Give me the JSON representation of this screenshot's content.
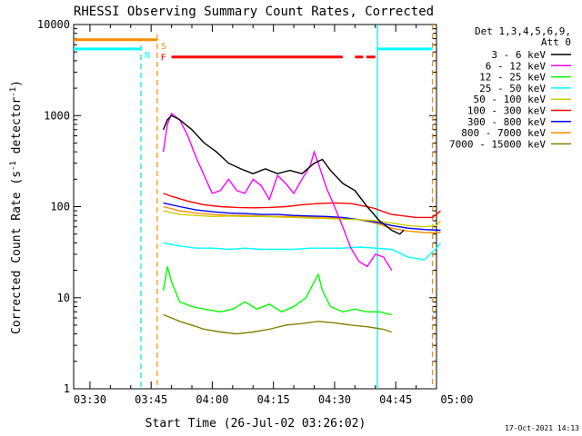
{
  "chart_data": {
    "type": "line",
    "title": "RHESSI Observing Summary Count Rates, Corrected",
    "xlabel": "Start Time (26-Jul-02 03:26:02)",
    "ylabel": "Corrected Count Rate (s",
    "ylabel_sup": "-1",
    "ylabel_rest": " detector",
    "ylabel_sup2": "-1",
    "ylabel_end": ")",
    "yscale": "log",
    "ylim": [
      1,
      10000
    ],
    "xlim_min": [
      26.0,
      115.0
    ],
    "xticks": [
      {
        "min": 30,
        "label": "03:30"
      },
      {
        "min": 45,
        "label": "03:45"
      },
      {
        "min": 60,
        "label": "04:00"
      },
      {
        "min": 75,
        "label": "04:15"
      },
      {
        "min": 90,
        "label": "04:30"
      },
      {
        "min": 105,
        "label": "04:45"
      },
      {
        "min": 120,
        "label": "05:00"
      }
    ],
    "yticks": [
      {
        "v": 1,
        "label": "1"
      },
      {
        "v": 10,
        "label": "10"
      },
      {
        "v": 100,
        "label": "100"
      },
      {
        "v": 1000,
        "label": "1000"
      },
      {
        "v": 10000,
        "label": "10000"
      }
    ],
    "legend": {
      "header1": "Det 1,3,4,5,6,9,",
      "header2": "Att 0",
      "placement": "right"
    },
    "series": [
      {
        "name": "3 - 6 keV",
        "color": "#000000",
        "points": [
          [
            48,
            700
          ],
          [
            49,
            900
          ],
          [
            50,
            1000
          ],
          [
            52,
            900
          ],
          [
            55,
            700
          ],
          [
            58,
            500
          ],
          [
            61,
            400
          ],
          [
            64,
            300
          ],
          [
            67,
            260
          ],
          [
            70,
            230
          ],
          [
            73,
            260
          ],
          [
            76,
            230
          ],
          [
            79,
            250
          ],
          [
            82,
            230
          ],
          [
            85,
            300
          ],
          [
            87,
            330
          ],
          [
            89,
            250
          ],
          [
            92,
            180
          ],
          [
            95,
            150
          ],
          [
            98,
            100
          ],
          [
            101,
            70
          ],
          [
            104,
            55
          ],
          [
            106,
            50
          ],
          [
            107,
            55
          ]
        ]
      },
      {
        "name": "6 - 12 keV",
        "color": "#ff00ff",
        "points": [
          [
            48,
            400
          ],
          [
            49,
            800
          ],
          [
            50,
            1050
          ],
          [
            52,
            900
          ],
          [
            54,
            600
          ],
          [
            56,
            350
          ],
          [
            58,
            220
          ],
          [
            60,
            140
          ],
          [
            62,
            150
          ],
          [
            64,
            200
          ],
          [
            66,
            150
          ],
          [
            68,
            140
          ],
          [
            70,
            200
          ],
          [
            72,
            170
          ],
          [
            74,
            120
          ],
          [
            76,
            220
          ],
          [
            78,
            180
          ],
          [
            80,
            140
          ],
          [
            82,
            200
          ],
          [
            84,
            280
          ],
          [
            85,
            400
          ],
          [
            86,
            300
          ],
          [
            88,
            160
          ],
          [
            90,
            100
          ],
          [
            92,
            60
          ],
          [
            94,
            35
          ],
          [
            96,
            25
          ],
          [
            98,
            22
          ],
          [
            100,
            30
          ],
          [
            102,
            28
          ],
          [
            104,
            20
          ]
        ]
      },
      {
        "name": "12 - 25 keV",
        "color": "#00ff00",
        "points": [
          [
            48,
            12
          ],
          [
            49,
            22
          ],
          [
            50,
            15
          ],
          [
            52,
            9
          ],
          [
            55,
            8
          ],
          [
            58,
            7.5
          ],
          [
            62,
            7
          ],
          [
            65,
            7.5
          ],
          [
            68,
            9
          ],
          [
            71,
            7.5
          ],
          [
            74,
            8.5
          ],
          [
            77,
            7
          ],
          [
            80,
            8
          ],
          [
            83,
            10
          ],
          [
            85,
            15
          ],
          [
            86,
            18
          ],
          [
            87,
            12
          ],
          [
            89,
            8
          ],
          [
            92,
            7
          ],
          [
            95,
            7.5
          ],
          [
            98,
            7
          ],
          [
            101,
            7
          ],
          [
            104,
            6.5
          ]
        ]
      },
      {
        "name": "25 - 50 keV",
        "color": "#00ffff",
        "points": [
          [
            48,
            40
          ],
          [
            52,
            37
          ],
          [
            56,
            35
          ],
          [
            60,
            35
          ],
          [
            64,
            34
          ],
          [
            68,
            35
          ],
          [
            72,
            34
          ],
          [
            76,
            34
          ],
          [
            80,
            34
          ],
          [
            84,
            35
          ],
          [
            88,
            35
          ],
          [
            92,
            35
          ],
          [
            96,
            36
          ],
          [
            100,
            35
          ],
          [
            104,
            34
          ],
          [
            108,
            28
          ],
          [
            112,
            26
          ],
          [
            115,
            35
          ],
          [
            116,
            40
          ]
        ]
      },
      {
        "name": "50 - 100 keV",
        "color": "#cccc00",
        "points": [
          [
            48,
            90
          ],
          [
            52,
            82
          ],
          [
            56,
            80
          ],
          [
            60,
            78
          ],
          [
            64,
            79
          ],
          [
            68,
            78
          ],
          [
            72,
            78
          ],
          [
            76,
            77
          ],
          [
            80,
            76
          ],
          [
            84,
            75
          ],
          [
            88,
            74
          ],
          [
            92,
            73
          ],
          [
            96,
            72
          ],
          [
            100,
            70
          ],
          [
            104,
            66
          ],
          [
            108,
            62
          ],
          [
            112,
            60
          ],
          [
            115,
            62
          ],
          [
            116,
            70
          ]
        ]
      },
      {
        "name": "100 - 300 keV",
        "color": "#ff0000",
        "points": [
          [
            48,
            140
          ],
          [
            50,
            130
          ],
          [
            54,
            115
          ],
          [
            58,
            105
          ],
          [
            62,
            100
          ],
          [
            66,
            98
          ],
          [
            70,
            97
          ],
          [
            74,
            98
          ],
          [
            78,
            100
          ],
          [
            82,
            105
          ],
          [
            86,
            108
          ],
          [
            90,
            110
          ],
          [
            94,
            108
          ],
          [
            98,
            100
          ],
          [
            100,
            95
          ],
          [
            102,
            88
          ],
          [
            104,
            82
          ],
          [
            106,
            80
          ],
          [
            110,
            76
          ],
          [
            114,
            76
          ],
          [
            116,
            90
          ]
        ]
      },
      {
        "name": "300 - 800 keV",
        "color": "#0000ff",
        "points": [
          [
            48,
            110
          ],
          [
            52,
            100
          ],
          [
            56,
            92
          ],
          [
            60,
            88
          ],
          [
            64,
            85
          ],
          [
            68,
            84
          ],
          [
            72,
            82
          ],
          [
            76,
            82
          ],
          [
            80,
            80
          ],
          [
            84,
            79
          ],
          [
            88,
            78
          ],
          [
            92,
            76
          ],
          [
            96,
            72
          ],
          [
            100,
            68
          ],
          [
            104,
            62
          ],
          [
            108,
            58
          ],
          [
            112,
            56
          ],
          [
            116,
            55
          ]
        ]
      },
      {
        "name": "800 - 7000 keV",
        "color": "#ff8c00",
        "points": [
          [
            48,
            100
          ],
          [
            52,
            90
          ],
          [
            56,
            85
          ],
          [
            60,
            82
          ],
          [
            64,
            80
          ],
          [
            68,
            80
          ],
          [
            72,
            79
          ],
          [
            76,
            78
          ],
          [
            80,
            78
          ],
          [
            84,
            77
          ],
          [
            88,
            76
          ],
          [
            92,
            74
          ],
          [
            96,
            72
          ],
          [
            100,
            66
          ],
          [
            104,
            58
          ],
          [
            108,
            54
          ],
          [
            112,
            52
          ],
          [
            116,
            52
          ]
        ]
      },
      {
        "name": "7000 - 15000 keV",
        "color": "#808000",
        "points": [
          [
            48,
            6.5
          ],
          [
            50,
            6
          ],
          [
            52,
            5.5
          ],
          [
            55,
            5
          ],
          [
            58,
            4.5
          ],
          [
            62,
            4.2
          ],
          [
            66,
            4
          ],
          [
            70,
            4.2
          ],
          [
            74,
            4.5
          ],
          [
            78,
            5
          ],
          [
            82,
            5.2
          ],
          [
            86,
            5.5
          ],
          [
            90,
            5.3
          ],
          [
            94,
            5
          ],
          [
            98,
            4.8
          ],
          [
            102,
            4.5
          ],
          [
            104,
            4.2
          ]
        ]
      }
    ],
    "flags": [
      {
        "label": "S",
        "color": "#ff8c00",
        "y_val": 6800,
        "x0": 26,
        "x1": 46.5
      },
      {
        "label": "N",
        "color": "#00ffff",
        "y_val": 5400,
        "x0": 26,
        "x1": 42.5
      },
      {
        "label": "F",
        "color": "#ff0000",
        "y_val": 4400,
        "segments": [
          [
            50,
            92
          ],
          [
            95,
            97
          ],
          [
            97.8,
            100
          ]
        ]
      }
    ],
    "flag_extra": {
      "color": "#00ffff",
      "y_val": 5400,
      "x0": 100.5,
      "x1": 114
    }
  },
  "timestamp": "17-Oct-2021 14:13"
}
